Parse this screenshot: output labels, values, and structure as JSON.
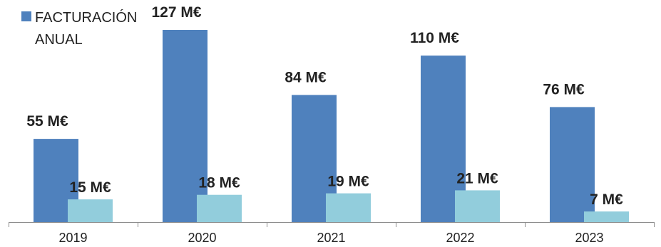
{
  "chart_data": {
    "type": "bar",
    "categories": [
      "2019",
      "2020",
      "2021",
      "2022",
      "2023"
    ],
    "series": [
      {
        "name": "FACTURACIÓN ANUAL",
        "values": [
          55,
          127,
          84,
          110,
          76
        ],
        "labels": [
          "55 M€",
          "127 M€",
          "84 M€",
          "110 M€",
          "76 M€"
        ],
        "color": "#4f81bd"
      },
      {
        "values": [
          15,
          18,
          19,
          21,
          7
        ],
        "labels": [
          "15 M€",
          "18 M€",
          "19 M€",
          "21 M€",
          "7 M€"
        ],
        "color": "#92cddc"
      }
    ],
    "legend": {
      "position": "top-left",
      "entries": [
        {
          "label_lines": [
            "FACTURACIÓN",
            "ANUAL"
          ],
          "color": "#4f81bd"
        }
      ]
    },
    "ylim": [
      0,
      135
    ],
    "grid": false,
    "title": "",
    "xlabel": "",
    "ylabel": ""
  }
}
